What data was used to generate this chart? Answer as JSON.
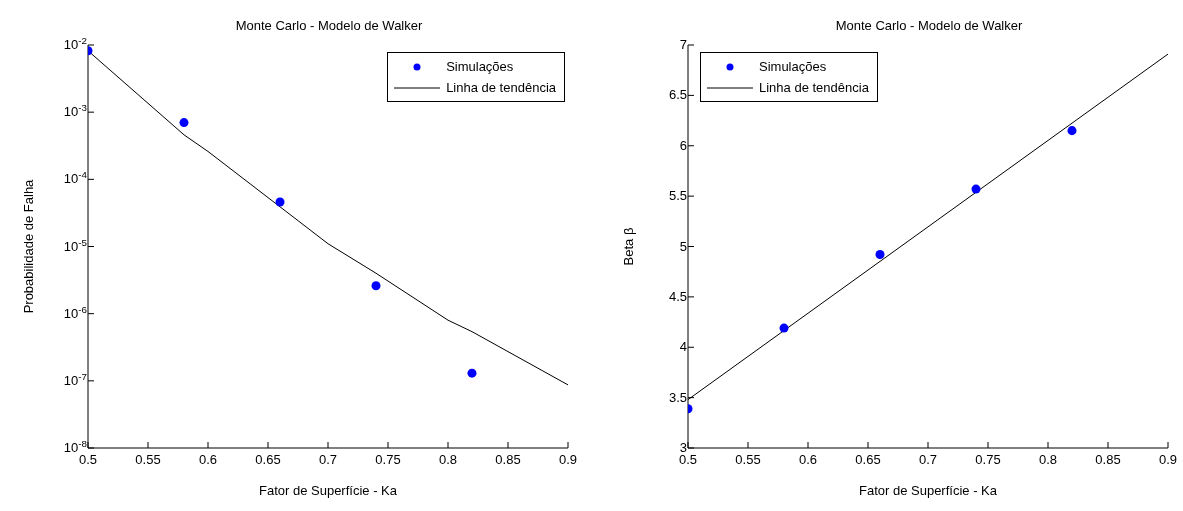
{
  "chart_data": [
    {
      "type": "scatter",
      "title": "Monte Carlo - Modelo de Walker",
      "xlabel": "Fator de Superfície - Ka",
      "ylabel": "Probabilidade de Falha",
      "log": "y",
      "legend": "top right",
      "grid": false,
      "xlim": [
        0.5,
        0.9
      ],
      "xticks": [
        0.5,
        0.55,
        0.6,
        0.65,
        0.7,
        0.75,
        0.8,
        0.85,
        0.9
      ],
      "ylim": [
        1e-08,
        0.01
      ],
      "yticks": [
        {
          "value": 1e-08,
          "label": "10$^{-8}$"
        },
        {
          "value": 1e-07,
          "label": "10$^{-7}$"
        },
        {
          "value": 1e-06,
          "label": "10$^{-6}$"
        },
        {
          "value": 1e-05,
          "label": "10$^{-5}$"
        },
        {
          "value": 0.0001,
          "label": "10$^{-4}$"
        },
        {
          "value": 0.001,
          "label": "10$^{-3}$"
        },
        {
          "value": 0.01,
          "label": "10$^{-2}$"
        }
      ],
      "series": [
        {
          "name": "Simulações",
          "type": "scatter",
          "color": "#0000ff",
          "marker": "circle",
          "x": [
            0.5,
            0.58,
            0.66,
            0.74,
            0.82
          ],
          "values": [
            0.0082,
            0.0007,
            4.6e-05,
            2.6e-06,
            1.3e-07
          ]
        },
        {
          "name": "Linha de tendência",
          "type": "line",
          "color": "#000000",
          "line_style": "solid",
          "x": [
            0.5,
            0.58,
            0.6,
            0.66,
            0.7,
            0.74,
            0.8,
            0.82,
            0.9
          ],
          "values": [
            0.0082,
            0.00046,
            0.00026,
            3.9e-05,
            1.1e-05,
            4e-06,
            8e-07,
            5.4e-07,
            8.7e-08
          ]
        }
      ]
    },
    {
      "type": "scatter",
      "title": "Monte Carlo - Modelo de Walker",
      "xlabel": "Fator de Superfície - Ka",
      "ylabel": "Beta β",
      "legend": "top left",
      "grid": false,
      "xlim": [
        0.5,
        0.9
      ],
      "xticks": [
        0.5,
        0.55,
        0.6,
        0.65,
        0.7,
        0.75,
        0.8,
        0.85,
        0.9
      ],
      "ylim": [
        3,
        7
      ],
      "yticks": [
        3,
        3.5,
        4,
        4.5,
        5,
        5.5,
        6,
        6.5,
        7
      ],
      "series": [
        {
          "name": "Simulações",
          "type": "scatter",
          "color": "#0000ff",
          "marker": "circle",
          "x": [
            0.5,
            0.58,
            0.66,
            0.74,
            0.82
          ],
          "values": [
            3.39,
            4.19,
            4.92,
            5.57,
            6.15
          ]
        },
        {
          "name": "Linha de tendência",
          "type": "line",
          "color": "#000000",
          "line_style": "solid",
          "x": [
            0.5,
            0.9
          ],
          "values": [
            3.48,
            6.91
          ]
        }
      ]
    }
  ]
}
